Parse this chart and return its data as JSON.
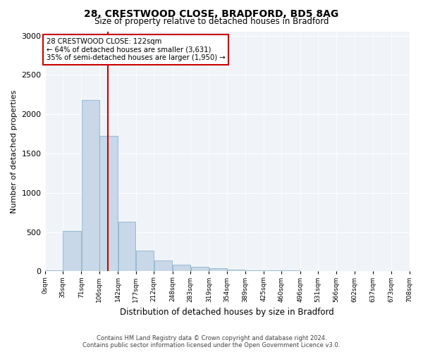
{
  "title1": "28, CRESTWOOD CLOSE, BRADFORD, BD5 8AG",
  "title2": "Size of property relative to detached houses in Bradford",
  "xlabel": "Distribution of detached houses by size in Bradford",
  "ylabel": "Number of detached properties",
  "annotation_line1": "28 CRESTWOOD CLOSE: 122sqm",
  "annotation_line2": "← 64% of detached houses are smaller (3,631)",
  "annotation_line3": "35% of semi-detached houses are larger (1,950) →",
  "property_sqm": 122,
  "bin_edges": [
    0,
    35,
    71,
    106,
    142,
    177,
    212,
    248,
    283,
    319,
    354,
    389,
    425,
    460,
    496,
    531,
    566,
    602,
    637,
    673,
    708
  ],
  "bar_heights": [
    10,
    510,
    2180,
    1720,
    630,
    260,
    135,
    80,
    55,
    35,
    20,
    15,
    10,
    10,
    5,
    5,
    5,
    3,
    2,
    2
  ],
  "bar_color": "#c8d8e8",
  "bar_edge_color": "#7baac8",
  "vline_color": "#cc0000",
  "vline_x": 122,
  "annotation_box_color": "#cc0000",
  "ylim": [
    0,
    3050
  ],
  "background_color": "#f0f4f8",
  "tick_labels": [
    "0sqm",
    "35sqm",
    "71sqm",
    "106sqm",
    "142sqm",
    "177sqm",
    "212sqm",
    "248sqm",
    "283sqm",
    "319sqm",
    "354sqm",
    "389sqm",
    "425sqm",
    "460sqm",
    "496sqm",
    "531sqm",
    "566sqm",
    "602sqm",
    "637sqm",
    "673sqm",
    "708sqm"
  ],
  "footer_line1": "Contains HM Land Registry data © Crown copyright and database right 2024.",
  "footer_line2": "Contains public sector information licensed under the Open Government Licence v3.0."
}
